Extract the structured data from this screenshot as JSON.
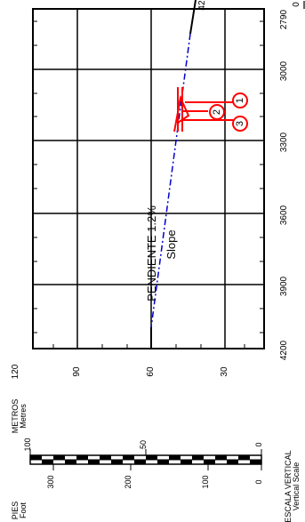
{
  "profile": {
    "slope_label": "PENDIENTE 1.2%",
    "slope_label_en": "Slope",
    "elevation_ticks": [
      "120",
      "90",
      "60",
      "30"
    ],
    "distance_ticks": [
      "2790",
      "3000",
      "3300",
      "3600",
      "3900",
      "4200"
    ],
    "zero_mark": "0",
    "top_mark": "42",
    "wells": [
      {
        "id": "1"
      },
      {
        "id": "2"
      },
      {
        "id": "3"
      }
    ]
  },
  "scale": {
    "units_metric": "METROS",
    "units_metric_en": "Metres",
    "units_imperial": "PIES",
    "units_imperial_en": "Foot",
    "metric_ticks": [
      "100",
      "50",
      "0"
    ],
    "imperial_ticks": [
      "300",
      "200",
      "100",
      "0"
    ],
    "title": "ESCALA VERTICAL",
    "title_en": "Vertical Scale"
  },
  "colors": {
    "slope_line": "#0000cc",
    "wells": "#ff0000",
    "ink": "#000000"
  }
}
